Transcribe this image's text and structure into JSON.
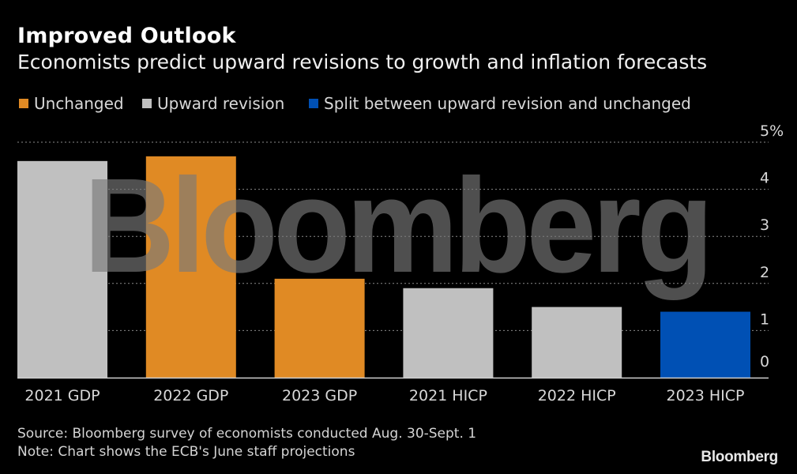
{
  "header": {
    "title": "Improved Outlook",
    "subtitle": "Economists predict upward revisions to growth and inflation forecasts"
  },
  "legend": [
    {
      "label": "Unchanged",
      "color": "#e08a24"
    },
    {
      "label": "Upward revision",
      "color": "#c0c0c0"
    },
    {
      "label": "Split between upward revision and unchanged",
      "color": "#0050b4"
    }
  ],
  "chart_data": {
    "type": "bar",
    "title": "Improved Outlook",
    "subtitle": "Economists predict upward revisions to growth and inflation forecasts",
    "categories": [
      "2021 GDP",
      "2022 GDP",
      "2023 GDP",
      "2021 HICP",
      "2022 HICP",
      "2023 HICP"
    ],
    "values": [
      4.6,
      4.7,
      2.1,
      1.9,
      1.5,
      1.4
    ],
    "bar_status": [
      "Upward revision",
      "Unchanged",
      "Unchanged",
      "Upward revision",
      "Upward revision",
      "Split between upward revision and unchanged"
    ],
    "bar_colors": [
      "#c0c0c0",
      "#e08a24",
      "#e08a24",
      "#c0c0c0",
      "#c0c0c0",
      "#0050b4"
    ],
    "xlabel": "",
    "ylabel": "",
    "ylim": [
      0,
      5
    ],
    "yticks": [
      0,
      1,
      2,
      3,
      4,
      5
    ],
    "ytick_labels": [
      "0",
      "1",
      "2",
      "3",
      "4",
      "5%"
    ],
    "y_axis_side": "right",
    "grid": true,
    "grid_style": "dotted",
    "legend_position": "top-left"
  },
  "watermark": "Bloomberg",
  "footer": {
    "source": "Source: Bloomberg survey of economists conducted Aug. 30-Sept. 1",
    "note": "Note: Chart shows the ECB's June staff projections",
    "logo": "Bloomberg"
  }
}
